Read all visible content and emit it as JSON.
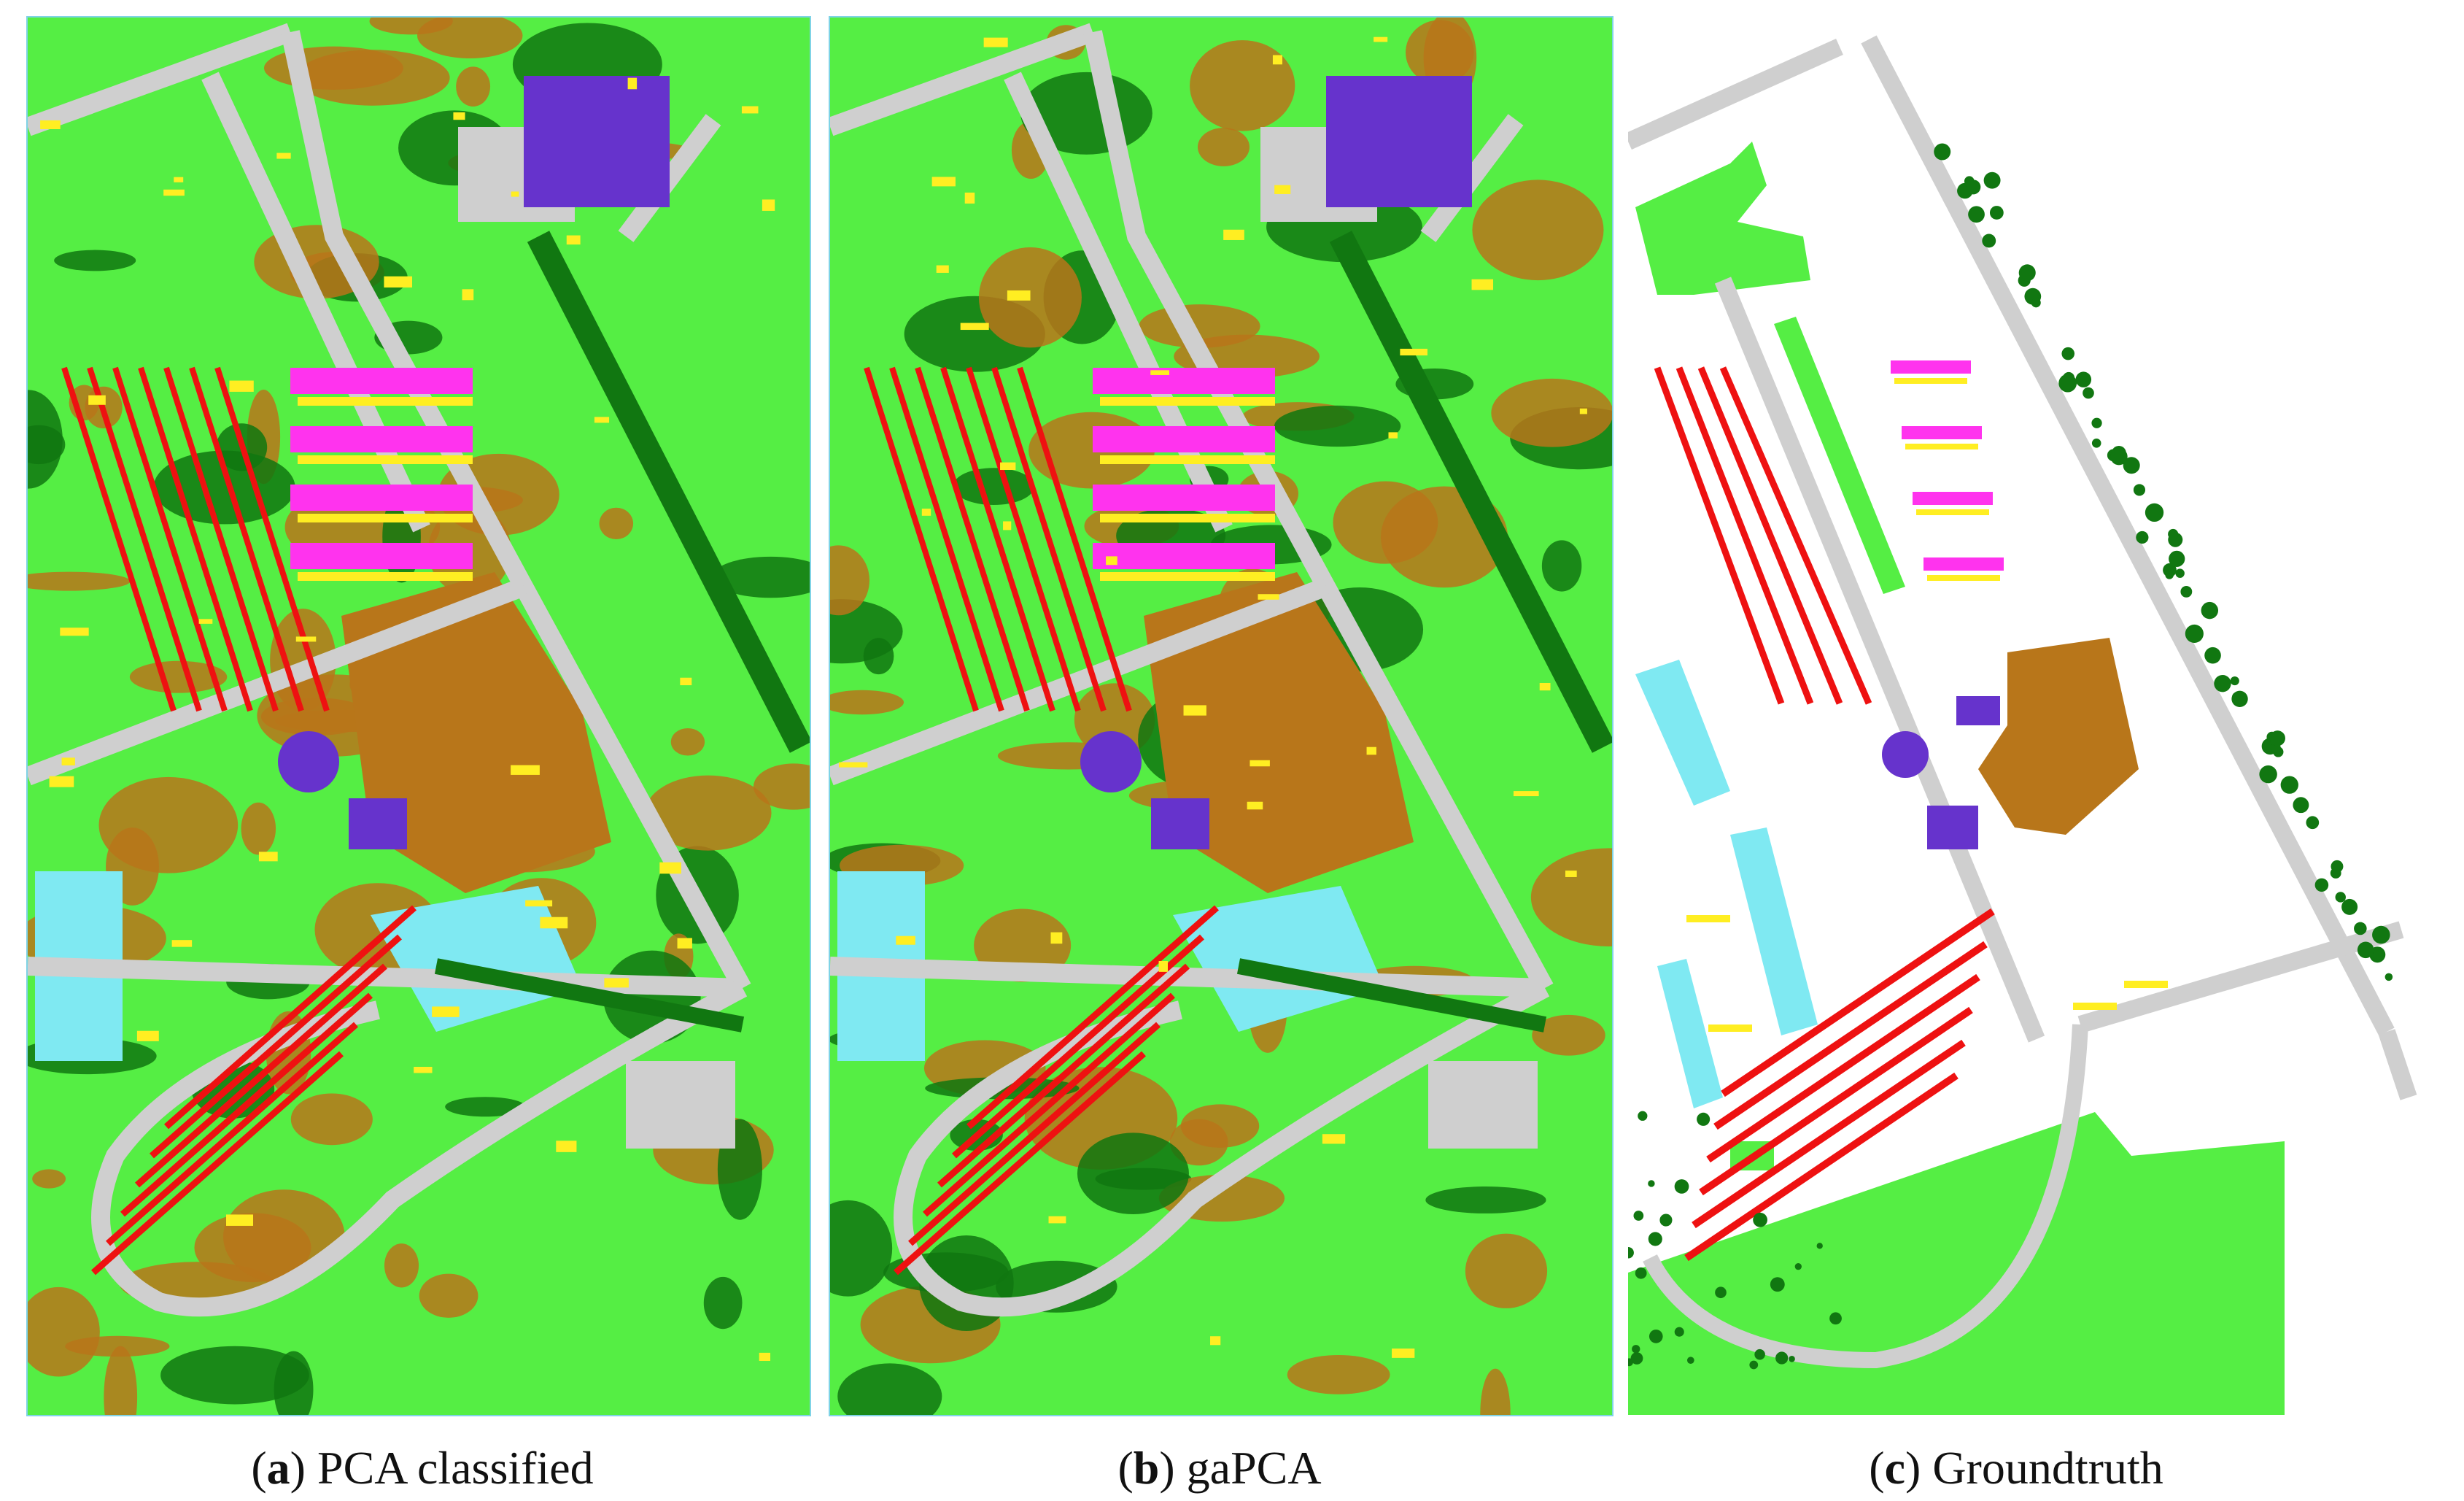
{
  "figure": {
    "panels": [
      {
        "id": "a",
        "label": "a",
        "caption": "PCA classified",
        "kind": "classified-map"
      },
      {
        "id": "b",
        "label": "b",
        "caption": "gaPCA",
        "kind": "classified-map"
      },
      {
        "id": "c",
        "label": "c",
        "caption": "Groundtruth",
        "kind": "groundtruth-map"
      }
    ]
  },
  "colors": {
    "meadows": "#55ee44",
    "trees": "#117711",
    "bare_soil": "#b8761a",
    "asphalt": "#cfcfcf",
    "gravel": "#7fe9f2",
    "bricks": "#ee1111",
    "bitumen": "#ff33ee",
    "shadows": "#ffee22",
    "painted_metal": "#6633cc",
    "unlabeled": "#ffffff",
    "frame": "#7fd3e6"
  }
}
